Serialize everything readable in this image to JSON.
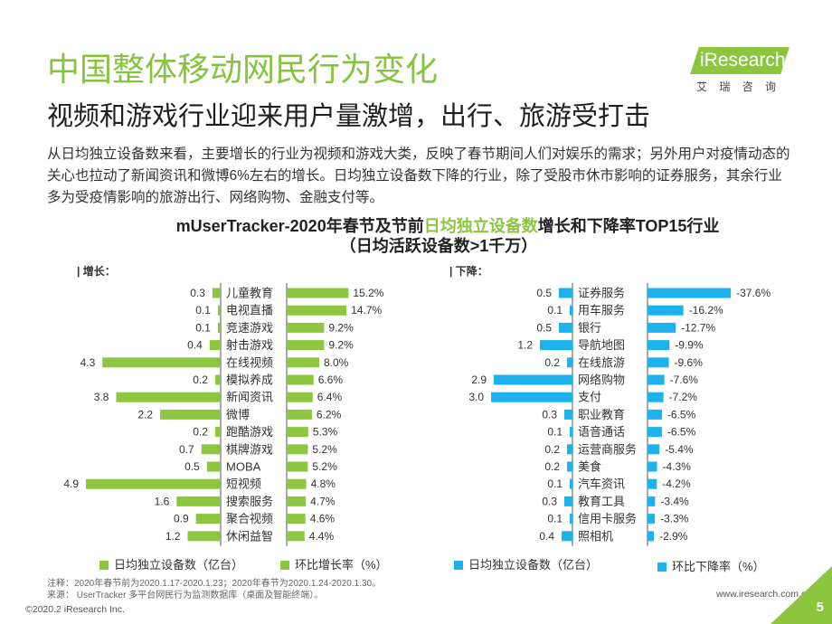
{
  "header": {
    "title": "中国整体移动网民行为变化",
    "subtitle": "视频和游戏行业迎来用户量激增，出行、旅游受打击"
  },
  "logo": {
    "brand": "iResearch",
    "chinese": "艾 瑞 咨 询"
  },
  "summary": {
    "lines": [
      "从日均独立设备数来看，主要增长的行业为视频和游戏大类，反映了春节期间人们对娱乐的需求；另外用户对疫情动态的",
      "关心也拉动了新闻资讯和微博6%左右的增长。日均独立设备数下降的行业，除了受股市休市影响的证券服务，其余行业",
      "多为受疫情影响的旅游出行、网络购物、金融支付等。"
    ]
  },
  "chart_title": {
    "prefix": "mUserTracker-2020年春节及节前",
    "highlight": "日均独立设备数",
    "suffix": "增长和下降率TOP15行业",
    "subtitle": "（日均活跃设备数>1千万）"
  },
  "chart_data": [
    {
      "type": "bar",
      "orientation": "horizontal",
      "panel_label": "| 增长：",
      "categories": [
        "儿童教育",
        "电视直播",
        "竞速游戏",
        "射击游戏",
        "在线视频",
        "模拟养成",
        "新闻资讯",
        "微博",
        "跑酷游戏",
        "棋牌游戏",
        "MOBA",
        "短视频",
        "搜索服务",
        "聚合视频",
        "休闲益智"
      ],
      "series": [
        {
          "name": "日均独立设备数（亿台）",
          "color": "#8dc63f",
          "values": [
            0.3,
            0.1,
            0.1,
            0.4,
            4.3,
            0.2,
            3.8,
            2.2,
            0.2,
            0.7,
            0.5,
            4.9,
            1.6,
            0.9,
            1.2
          ]
        },
        {
          "name": "环比增长率（%）",
          "color": "#8dc63f",
          "unit": "%",
          "values": [
            15.2,
            14.7,
            9.2,
            9.2,
            8.0,
            6.6,
            6.4,
            6.2,
            5.3,
            5.2,
            5.2,
            4.8,
            4.7,
            4.6,
            4.4
          ]
        }
      ],
      "legend_position": "bottom"
    },
    {
      "type": "bar",
      "orientation": "horizontal",
      "panel_label": "| 下降：",
      "categories": [
        "证券服务",
        "用车服务",
        "银行",
        "导航地图",
        "在线旅游",
        "网络购物",
        "支付",
        "职业教育",
        "语音通话",
        "运营商服务",
        "美食",
        "汽车资讯",
        "教育工具",
        "信用卡服务",
        "照相机"
      ],
      "series": [
        {
          "name": "日均独立设备数（亿台）",
          "color": "#1cb2ec",
          "values": [
            0.5,
            0.1,
            0.5,
            1.2,
            0.2,
            2.9,
            3.0,
            0.3,
            0.1,
            0.2,
            0.2,
            0.1,
            0.3,
            0.1,
            0.4
          ]
        },
        {
          "name": "环比下降率（%）",
          "color": "#1cb2ec",
          "unit": "%",
          "values": [
            -37.6,
            -16.2,
            -12.7,
            -9.9,
            -9.6,
            -7.6,
            -7.2,
            -6.5,
            -6.5,
            -5.4,
            -4.3,
            -4.2,
            -3.4,
            -3.3,
            -2.9
          ]
        }
      ],
      "legend_position": "bottom"
    }
  ],
  "notes": {
    "annotation": "注释：2020年春节前为2020.1.17-2020.1.23；2020年春节为2020.1.24-2020.1.30。",
    "source": "来源： UserTracker 多平台网民行为监测数据库（桌面及智能终端）。"
  },
  "footer": {
    "website": "www.iresearch.com.cn",
    "copyright": "©2020.2 iResearch Inc.",
    "page_number": "5"
  },
  "colors": {
    "title_green": "#86c440",
    "accent_green": "#8cc63f",
    "accent_blue": "#1cb2ec"
  }
}
